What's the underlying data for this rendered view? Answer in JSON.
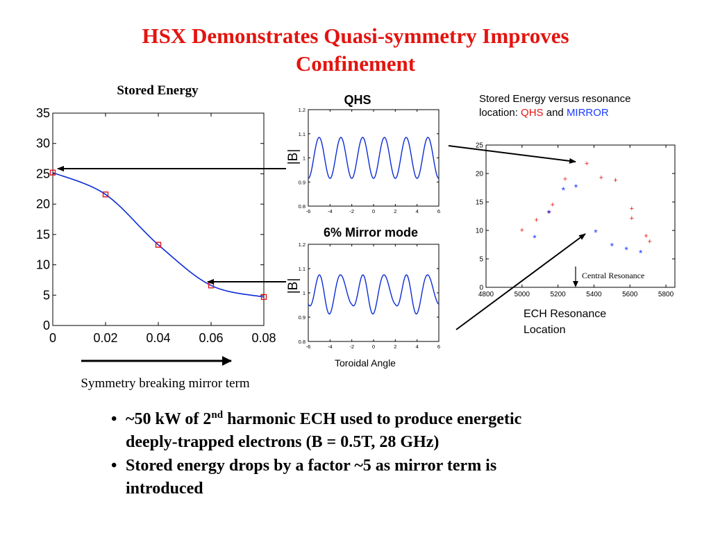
{
  "title": {
    "line1": "HSX Demonstrates Quasi-symmetry Improves",
    "line2": "Confinement"
  },
  "left_plot": {
    "title": "Stored Energy",
    "xlabel": "Symmetry breaking mirror term",
    "xticks": [
      "0",
      "0.02",
      "0.04",
      "0.06",
      "0.08"
    ],
    "yticks": [
      "0",
      "5",
      "10",
      "15",
      "20",
      "25",
      "30",
      "35"
    ]
  },
  "qhs_plot": {
    "title": "QHS",
    "ylabel": "|B|",
    "yticks": [
      "0.8",
      "0.9",
      "1",
      "1.1",
      "1.2"
    ],
    "xticks": [
      "-6",
      "-4",
      "-2",
      "0",
      "2",
      "4",
      "6"
    ]
  },
  "mirror_plot": {
    "title": "6% Mirror mode",
    "ylabel": "|B|",
    "xlabel": "Toroidal Angle",
    "yticks": [
      "0.8",
      "0.9",
      "1",
      "1.1",
      "1.2"
    ],
    "xticks": [
      "-6",
      "-4",
      "-2",
      "0",
      "2",
      "4",
      "6"
    ]
  },
  "right_plot": {
    "caption_line1": "Stored Energy versus resonance",
    "caption_prefix": "location: ",
    "caption_qhs": "QHS",
    "caption_and": " and ",
    "caption_mirror": "MIRROR",
    "annotation": "Central Resonance",
    "xlabel_line1": "ECH Resonance",
    "xlabel_line2": "Location",
    "xticks": [
      "4800",
      "5000",
      "5200",
      "5400",
      "5600",
      "5800"
    ],
    "yticks": [
      "0",
      "5",
      "10",
      "15",
      "20",
      "25"
    ]
  },
  "bullets": [
    {
      "pre": "~50 kW of 2",
      "sup": "nd",
      "post": " harmonic ECH used to produce energetic",
      "line2": "deeply-trapped electrons (B = 0.5T, 28 GHz)"
    },
    {
      "line1": "Stored energy drops by a factor ~5 as mirror term is",
      "line2": "introduced"
    }
  ],
  "colors": {
    "title": "#e3140f",
    "qhs": "#e3140f",
    "mirror": "#1a3cff",
    "curve": "#0a2bd6",
    "marker": "#e0141e"
  },
  "chart_data": [
    {
      "type": "line",
      "title": "Stored Energy",
      "xlabel": "Symmetry breaking mirror term",
      "xlim": [
        0,
        0.08
      ],
      "ylim": [
        0,
        35
      ],
      "series": [
        {
          "values": [
            [
              0,
              25.2
            ],
            [
              0.02,
              21.6
            ],
            [
              0.04,
              13.3
            ],
            [
              0.06,
              6.6
            ],
            [
              0.08,
              4.7
            ]
          ]
        }
      ]
    },
    {
      "type": "line",
      "title": "QHS",
      "ylabel": "|B|",
      "xlim": [
        -6,
        6
      ],
      "ylim": [
        0.8,
        1.2
      ],
      "description_values": {
        "mean": 1.0,
        "amplitude": 0.085,
        "periods": 6
      }
    },
    {
      "type": "line",
      "title": "6% Mirror mode",
      "ylabel": "|B|",
      "xlabel": "Toroidal Angle",
      "xlim": [
        -6,
        6
      ],
      "ylim": [
        0.8,
        1.2
      ],
      "description_values": {
        "mean": 1.0,
        "amplitude_fast": 0.085,
        "periods_fast": 6,
        "mirror_amplitude": 0.06
      }
    },
    {
      "type": "scatter",
      "xlim": [
        4800,
        5850
      ],
      "ylim": [
        0,
        25
      ],
      "xlabel": "ECH Resonance Location",
      "series": [
        {
          "name": "QHS",
          "values": [
            [
              5000,
              10.1
            ],
            [
              5080,
              11.9
            ],
            [
              5150,
              13.3
            ],
            [
              5170,
              14.6
            ],
            [
              5240,
              19.1
            ],
            [
              5360,
              21.8
            ],
            [
              5440,
              19.3
            ],
            [
              5520,
              18.9
            ],
            [
              5610,
              13.9
            ],
            [
              5610,
              12.2
            ],
            [
              5690,
              9.1
            ],
            [
              5710,
              8.1
            ]
          ]
        },
        {
          "name": "MIRROR",
          "values": [
            [
              5070,
              8.9
            ],
            [
              5150,
              13.3
            ],
            [
              5230,
              17.3
            ],
            [
              5300,
              17.8
            ],
            [
              5410,
              9.9
            ],
            [
              5500,
              7.5
            ],
            [
              5580,
              6.8
            ],
            [
              5660,
              6.3
            ]
          ]
        }
      ],
      "annotation_x": 5320
    }
  ]
}
